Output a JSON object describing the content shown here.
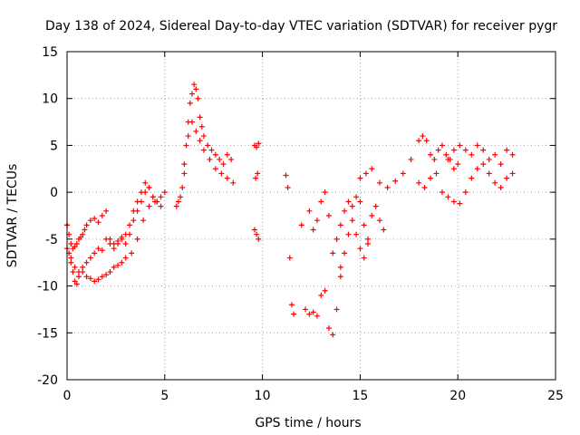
{
  "chart_data": {
    "type": "scatter",
    "title": "Day 138 of 2024, Sidereal Day-to-day VTEC variation (SDTVAR) for receiver pygr",
    "xlabel": "GPS time / hours",
    "ylabel": "SDTVAR / TECUs",
    "xlim": [
      0,
      25
    ],
    "ylim": [
      -20,
      15
    ],
    "xticks": [
      0,
      5,
      10,
      15,
      20,
      25
    ],
    "yticks": [
      -20,
      -15,
      -10,
      -5,
      0,
      5,
      10,
      15
    ],
    "grid": true,
    "marker": "+",
    "marker_color": "#ff0000",
    "series": [
      {
        "name": "SDTVAR",
        "x": [
          0.0,
          0.1,
          0.2,
          0.3,
          0.4,
          0.5,
          0.6,
          0.7,
          0.8,
          0.9,
          1.0,
          1.2,
          1.4,
          1.6,
          1.8,
          2.0,
          2.2,
          2.4,
          2.6,
          2.8,
          3.0,
          3.2,
          3.4,
          3.6,
          3.8,
          4.0,
          4.2,
          4.4,
          4.6,
          4.8,
          5.0,
          0.0,
          0.2,
          0.4,
          0.6,
          0.8,
          1.0,
          1.2,
          1.4,
          1.6,
          1.8,
          2.0,
          2.2,
          2.4,
          2.6,
          2.8,
          3.0,
          3.2,
          3.4,
          3.6,
          3.8,
          4.0,
          4.2,
          4.4,
          4.6,
          4.8,
          0.0,
          0.1,
          0.2,
          0.3,
          0.4,
          0.5,
          0.6,
          0.8,
          1.0,
          1.2,
          1.4,
          1.6,
          1.8,
          2.0,
          2.2,
          2.4,
          2.6,
          2.8,
          3.0,
          3.3,
          3.6,
          3.9,
          4.2,
          4.5,
          5.6,
          5.8,
          6.0,
          6.1,
          6.2,
          6.3,
          6.4,
          6.5,
          6.6,
          6.7,
          6.8,
          6.9,
          7.0,
          7.2,
          7.4,
          7.6,
          7.8,
          8.0,
          8.2,
          8.4,
          5.7,
          5.9,
          6.0,
          6.2,
          6.4,
          6.6,
          6.8,
          7.0,
          7.3,
          7.6,
          7.9,
          8.2,
          8.5,
          9.6,
          9.7,
          9.8,
          9.65,
          9.75,
          9.6,
          9.7,
          9.8,
          11.2,
          11.3,
          11.4,
          11.5,
          11.6,
          12.0,
          12.2,
          12.4,
          12.6,
          12.8,
          13.0,
          13.2,
          13.4,
          13.6,
          13.8,
          14.0,
          12.4,
          12.6,
          12.8,
          13.0,
          13.2,
          13.4,
          13.6,
          13.8,
          14.0,
          14.2,
          14.4,
          14.6,
          14.8,
          15.0,
          15.2,
          15.4,
          15.6,
          15.8,
          16.0,
          16.2,
          14.0,
          14.2,
          14.4,
          14.6,
          14.8,
          15.0,
          15.2,
          15.4,
          15.0,
          15.3,
          15.6,
          16.0,
          16.4,
          16.8,
          17.2,
          17.6,
          18.0,
          18.2,
          18.4,
          18.6,
          18.8,
          19.0,
          19.2,
          19.4,
          19.6,
          19.8,
          20.0,
          18.0,
          18.3,
          18.6,
          18.9,
          19.2,
          19.5,
          19.8,
          20.1,
          20.4,
          20.7,
          21.0,
          21.3,
          21.6,
          21.9,
          22.2,
          22.5,
          22.8,
          19.5,
          19.8,
          20.1,
          20.4,
          20.7,
          21.0,
          21.3,
          21.6,
          21.9,
          22.2,
          22.5,
          22.8
        ],
        "y": [
          -3.5,
          -4.5,
          -5.5,
          -6.0,
          -5.8,
          -5.5,
          -5.0,
          -4.8,
          -4.5,
          -4.0,
          -3.5,
          -3.0,
          -2.8,
          -3.2,
          -2.5,
          -2.0,
          -5.0,
          -5.5,
          -5.2,
          -4.8,
          -4.5,
          -3.5,
          -2.0,
          -1.0,
          0.0,
          1.0,
          0.5,
          -0.5,
          -1.0,
          -0.5,
          0.0,
          -6.0,
          -7.0,
          -8.0,
          -8.5,
          -8.0,
          -7.5,
          -7.0,
          -6.5,
          -6.0,
          -6.2,
          -5.0,
          -5.5,
          -6.0,
          -5.5,
          -5.0,
          -5.5,
          -4.5,
          -3.0,
          -2.0,
          -1.0,
          0.0,
          0.5,
          -0.5,
          -1.0,
          -1.5,
          -3.5,
          -6.5,
          -7.5,
          -8.5,
          -9.5,
          -9.8,
          -9.0,
          -8.5,
          -9.0,
          -9.2,
          -9.5,
          -9.3,
          -9.0,
          -8.8,
          -8.5,
          -8.0,
          -7.8,
          -7.5,
          -7.0,
          -6.5,
          -5.0,
          -3.0,
          -1.5,
          -1.0,
          -1.5,
          -0.5,
          2.0,
          5.0,
          7.5,
          9.5,
          10.5,
          11.5,
          11.0,
          10.0,
          8.0,
          7.0,
          6.0,
          5.0,
          4.5,
          4.0,
          3.5,
          3.0,
          4.0,
          3.5,
          -1.0,
          0.5,
          3.0,
          6.0,
          7.5,
          6.5,
          5.5,
          4.5,
          3.5,
          2.5,
          2.0,
          1.5,
          1.0,
          5.0,
          4.8,
          5.2,
          1.5,
          2.0,
          -4.0,
          -4.5,
          -5.0,
          1.8,
          0.5,
          -7.0,
          -12.0,
          -13.0,
          -3.5,
          -12.5,
          -13.0,
          -12.8,
          -13.2,
          -11.0,
          -10.5,
          -14.5,
          -15.2,
          -12.5,
          -9.0,
          -2.0,
          -4.0,
          -3.0,
          -1.0,
          0.0,
          -2.5,
          -6.5,
          -5.0,
          -3.5,
          -2.0,
          -1.0,
          -3.0,
          -4.5,
          -6.0,
          -7.0,
          -5.0,
          -2.5,
          -1.5,
          -3.0,
          -4.0,
          -8.0,
          -6.5,
          -4.5,
          -1.5,
          -0.5,
          -1.0,
          -3.5,
          -5.5,
          1.5,
          2.0,
          2.5,
          1.0,
          0.5,
          1.2,
          2.0,
          3.5,
          5.5,
          6.0,
          5.5,
          4.0,
          3.5,
          4.5,
          5.0,
          4.0,
          3.5,
          2.5,
          3.0,
          1.0,
          0.5,
          1.5,
          2.0,
          0.0,
          -0.5,
          -1.0,
          -1.2,
          0.0,
          1.5,
          2.5,
          3.0,
          2.0,
          1.0,
          0.5,
          1.5,
          2.0,
          3.5,
          4.5,
          5.0,
          4.5,
          4.0,
          5.0,
          4.5,
          3.5,
          4.0,
          3.0,
          4.5,
          4.0
        ]
      }
    ]
  }
}
